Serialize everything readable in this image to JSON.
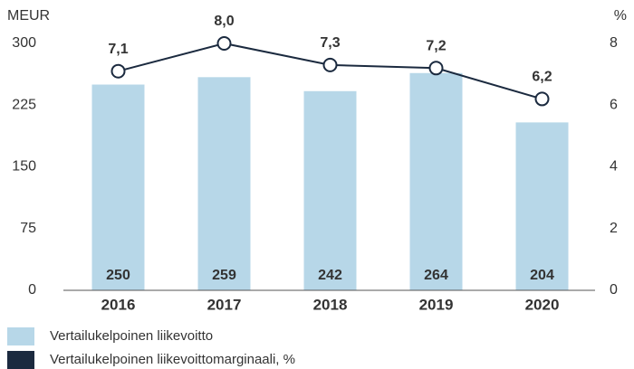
{
  "chart_data": {
    "type": "bar",
    "y_label": "MEUR",
    "y2_label": "%",
    "categories": [
      "2016",
      "2017",
      "2018",
      "2019",
      "2020"
    ],
    "series": [
      {
        "name": "Vertailukelpoinen liikevoitto",
        "type": "bar",
        "color": "#b7d7e8",
        "values": [
          250,
          259,
          242,
          264,
          204
        ]
      },
      {
        "name": "Vertailukelpoinen liikevoittomarginaali, %",
        "type": "line",
        "axis": "y2",
        "color": "#1b2a3f",
        "values": [
          7.1,
          8.0,
          7.3,
          7.2,
          6.2
        ],
        "value_labels": [
          "7,1",
          "8,0",
          "7,3",
          "7,2",
          "6,2"
        ]
      }
    ],
    "ylim": [
      0,
      300
    ],
    "yticks": [
      0,
      75,
      150,
      225,
      300
    ],
    "y2lim": [
      0,
      8
    ],
    "y2ticks": [
      0,
      2,
      4,
      6,
      8
    ]
  }
}
